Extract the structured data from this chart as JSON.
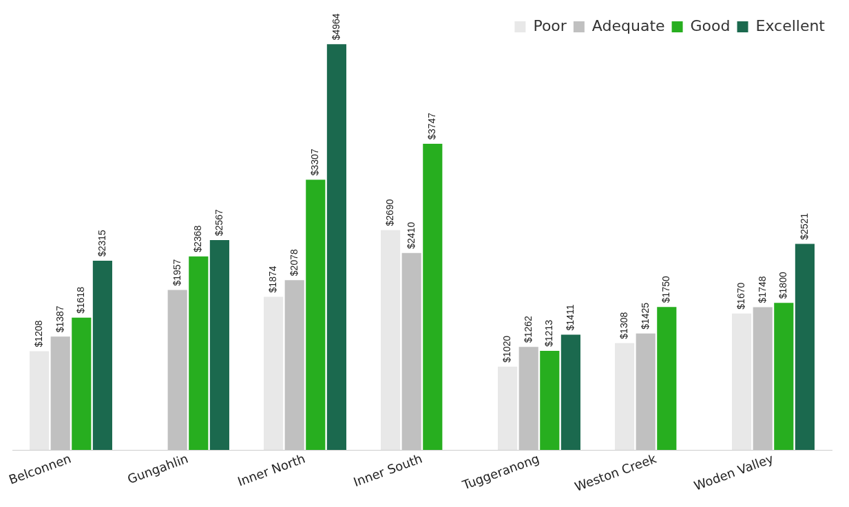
{
  "chart_data": {
    "type": "bar",
    "categories": [
      "Belconnen",
      "Gungahlin",
      "Inner North",
      "Inner South",
      "Tuggeranong",
      "Weston Creek",
      "Woden Valley"
    ],
    "series": [
      {
        "name": "Poor",
        "color": "#e8e8e8",
        "values": [
          1208,
          null,
          1874,
          2690,
          1020,
          1308,
          1670
        ],
        "value_labels": [
          "$1208",
          null,
          "$1874",
          "$2690",
          "$1020",
          "$1308",
          "$1670"
        ]
      },
      {
        "name": "Adequate",
        "color": "#c0c0c0",
        "values": [
          1387,
          1957,
          2078,
          2410,
          1262,
          1425,
          1748
        ],
        "value_labels": [
          "$1387",
          "$1957",
          "$2078",
          "$2410",
          "$1262",
          "$1425",
          "$1748"
        ]
      },
      {
        "name": "Good",
        "color": "#27ae1f",
        "values": [
          1618,
          2368,
          3307,
          3747,
          1213,
          1750,
          1800
        ],
        "value_labels": [
          "$1618",
          "$2368",
          "$3307",
          "$3747",
          "$1213",
          "$1750",
          "$1800"
        ]
      },
      {
        "name": "Excellent",
        "color": "#1b694e",
        "values": [
          2315,
          2567,
          4964,
          null,
          1411,
          null,
          2521
        ],
        "value_labels": [
          "$2315",
          "$2567",
          "$4964",
          null,
          "$1411",
          null,
          "$2521"
        ]
      }
    ],
    "legend": "top right",
    "grid": false,
    "tick_labels": "x"
  }
}
